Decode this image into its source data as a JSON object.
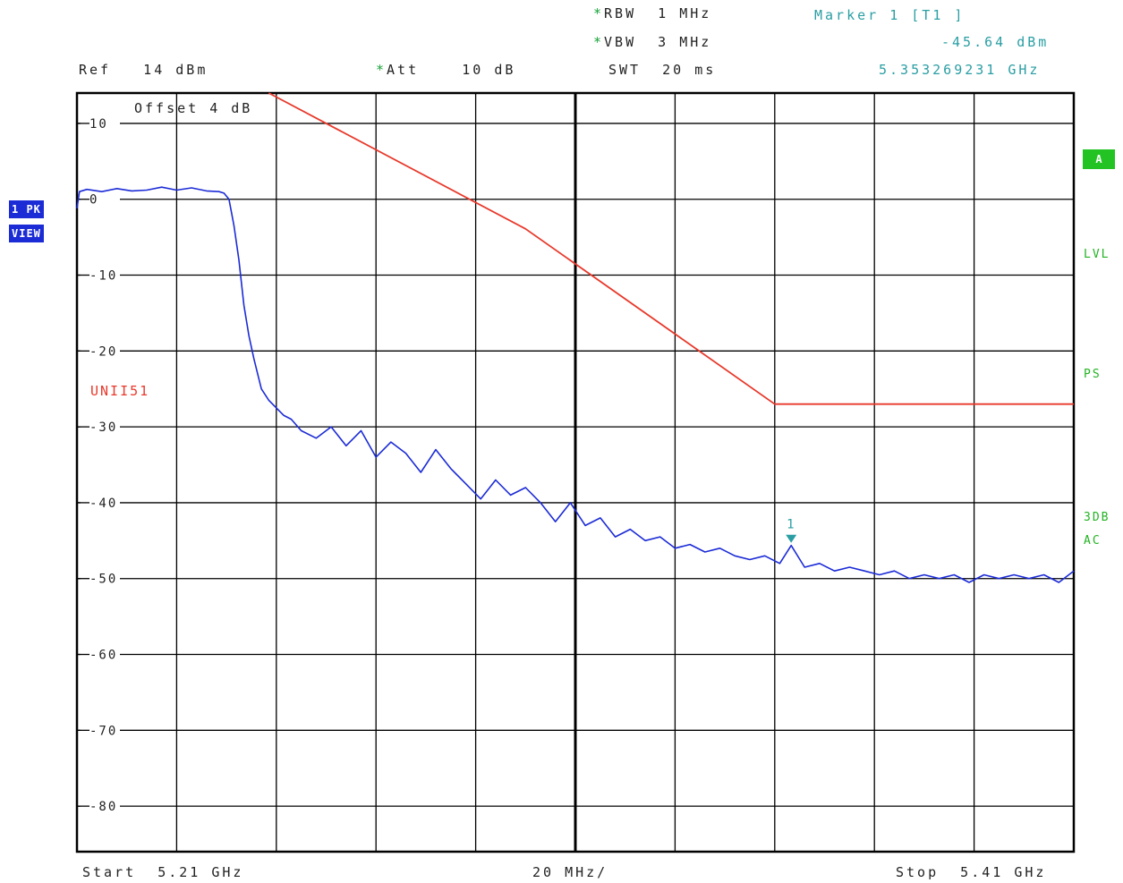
{
  "header": {
    "rbw": "RBW  1 MHz",
    "vbw": "VBW  3 MHz",
    "swt": "SWT  20 ms",
    "ref": "Ref   14 dBm",
    "att": "Att    10 dB",
    "offset": "Offset    4 dB",
    "star": "*"
  },
  "marker": {
    "title": "Marker 1 [T1 ]",
    "level": "-45.64 dBm",
    "freq": "5.353269231 GHz",
    "label": "1"
  },
  "left_badges": {
    "trace": "1 PK",
    "mode": "VIEW"
  },
  "right_indicators": {
    "a": "A",
    "lvl": "LVL",
    "ps": "PS",
    "db3": "3DB",
    "ac": "AC"
  },
  "footer": {
    "start": "Start  5.21 GHz",
    "span": "20 MHz/",
    "stop": "Stop  5.41 GHz"
  },
  "colors": {
    "trace": "#1b2bd6",
    "limit": "#e8392b",
    "marker": "#2a9ea3",
    "grid": "#000000"
  },
  "chart_data": {
    "type": "line",
    "x_unit": "GHz",
    "y_unit": "dBm",
    "xlim": [
      5.21,
      5.41
    ],
    "ylim": [
      -86,
      14
    ],
    "y_ticks": [
      10,
      0,
      -10,
      -20,
      -30,
      -40,
      -50,
      -60,
      -70,
      -80
    ],
    "y_tick_labels": [
      "10",
      "0",
      "-10",
      "-20",
      "-30",
      "-40",
      "-50",
      "-60",
      "-70",
      "-80"
    ],
    "x_divisions": 10,
    "grid": true,
    "series": [
      {
        "name": "",
        "color": "#1b2bd6",
        "x": [
          5.21,
          5.2105,
          5.212,
          5.215,
          5.218,
          5.221,
          5.224,
          5.227,
          5.23,
          5.233,
          5.236,
          5.2385,
          5.2395,
          5.2405,
          5.2415,
          5.2425,
          5.2435,
          5.2445,
          5.2455,
          5.247,
          5.2485,
          5.25,
          5.2515,
          5.253,
          5.255,
          5.258,
          5.261,
          5.264,
          5.267,
          5.27,
          5.273,
          5.276,
          5.279,
          5.282,
          5.285,
          5.288,
          5.291,
          5.294,
          5.297,
          5.3,
          5.303,
          5.306,
          5.309,
          5.312,
          5.315,
          5.318,
          5.321,
          5.324,
          5.327,
          5.33,
          5.333,
          5.336,
          5.339,
          5.342,
          5.345,
          5.348,
          5.351,
          5.3533,
          5.356,
          5.359,
          5.362,
          5.365,
          5.368,
          5.371,
          5.374,
          5.377,
          5.38,
          5.383,
          5.386,
          5.389,
          5.392,
          5.395,
          5.398,
          5.401,
          5.404,
          5.407,
          5.41
        ],
        "y": [
          -1.2,
          1.0,
          1.3,
          1.0,
          1.4,
          1.1,
          1.2,
          1.6,
          1.2,
          1.5,
          1.1,
          1.0,
          0.8,
          0.0,
          -3.5,
          -8.0,
          -14.0,
          -18.0,
          -21.0,
          -25.0,
          -26.5,
          -27.5,
          -28.5,
          -29.0,
          -30.5,
          -31.5,
          -30.0,
          -32.5,
          -30.5,
          -34.0,
          -32.0,
          -33.5,
          -36.0,
          -33.0,
          -35.5,
          -37.5,
          -39.5,
          -37.0,
          -39.0,
          -38.0,
          -40.0,
          -42.5,
          -40.0,
          -43.0,
          -42.0,
          -44.5,
          -43.5,
          -45.0,
          -44.5,
          -46.0,
          -45.5,
          -46.5,
          -46.0,
          -47.0,
          -47.5,
          -47.0,
          -48.0,
          -45.64,
          -48.5,
          -48.0,
          -49.0,
          -48.5,
          -49.0,
          -49.5,
          -49.0,
          -50.0,
          -49.5,
          -50.0,
          -49.5,
          -50.5,
          -49.5,
          -50.0,
          -49.5,
          -50.0,
          -49.5,
          -50.5,
          -49.0
        ]
      },
      {
        "name": "UNII51",
        "color": "#e8392b",
        "x": [
          5.2485,
          5.3,
          5.35,
          5.41
        ],
        "y": [
          14,
          -3.9,
          -27.0,
          -27.0
        ]
      }
    ],
    "annotations": [
      {
        "text": "UNII51",
        "color": "#e8392b"
      },
      {
        "text": "1",
        "x": 5.3533,
        "y": -45.64,
        "color": "#2a9ea3"
      }
    ]
  }
}
